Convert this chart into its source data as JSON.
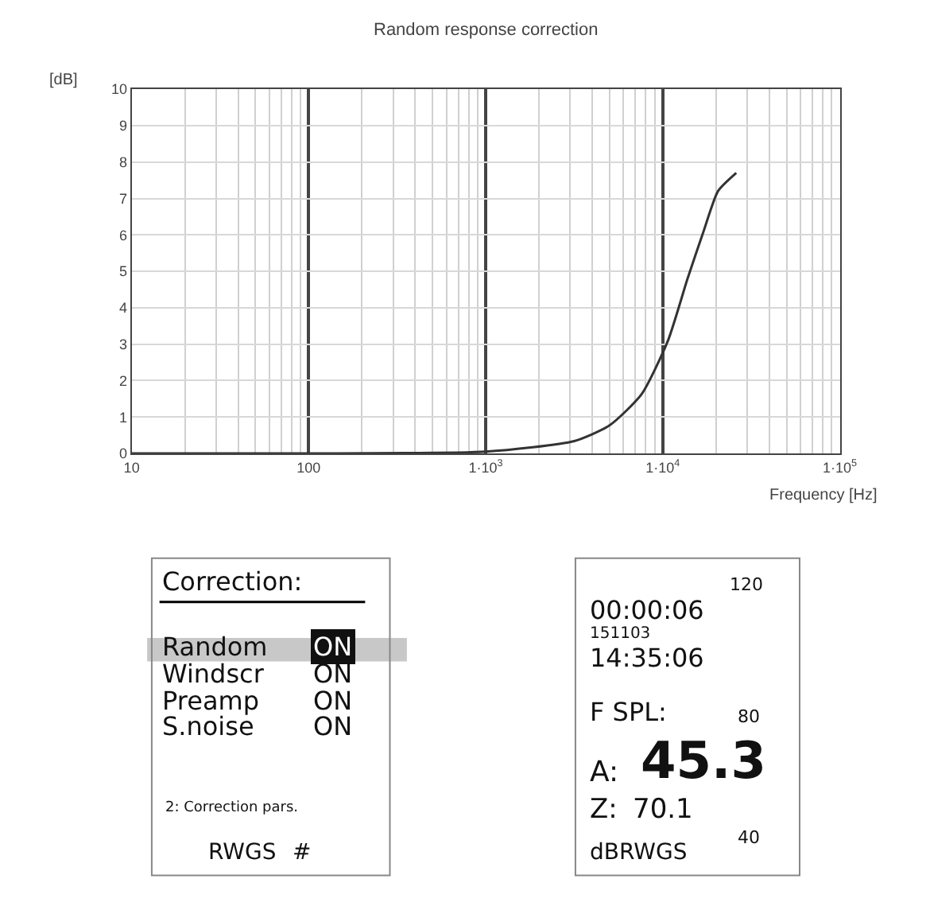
{
  "chart_data": [
    {
      "type": "line",
      "title": "Random response correction",
      "xlabel": "Frequency [Hz]",
      "ylabel": "[dB]",
      "log": "x",
      "grid": true,
      "marker": "none",
      "line_style": "solid",
      "x": [
        10,
        100,
        1000,
        3162,
        5000,
        7600,
        10700,
        13800,
        17000,
        20500,
        26000
      ],
      "series": [
        {
          "color": "#333333",
          "values": [
            0,
            0,
            0.05,
            0.34,
            0.77,
            1.63,
            3.1,
            4.8,
            6.1,
            7.2,
            7.7
          ]
        }
      ],
      "xlim": [
        10,
        100000
      ],
      "xticks": [
        10,
        100,
        {
          "value": 1000,
          "label": "1·10$^{3}$"
        },
        {
          "value": 10000,
          "label": "1·10$^{4}$"
        },
        {
          "value": 100000,
          "label": "1·10$^{5}$"
        }
      ],
      "ylim": [
        0,
        10
      ],
      "yticks": [
        0,
        1,
        2,
        3,
        4,
        5,
        6,
        7,
        8,
        9,
        10
      ]
    },
    {
      "type": "other",
      "annotations": [
        "Correction:",
        "Random",
        "ON",
        "Windscr",
        "ON",
        "Preamp",
        "ON",
        "S.noise",
        "ON",
        "2: Correction pars.",
        "RWGS",
        "#"
      ]
    },
    {
      "type": "other",
      "annotations": [
        "120",
        "00:00:06",
        "151103",
        "14:35:06",
        "F SPL:",
        "80",
        "A:",
        "45.3",
        "Z:",
        "70.1",
        "40",
        "dBRWGS"
      ]
    }
  ]
}
